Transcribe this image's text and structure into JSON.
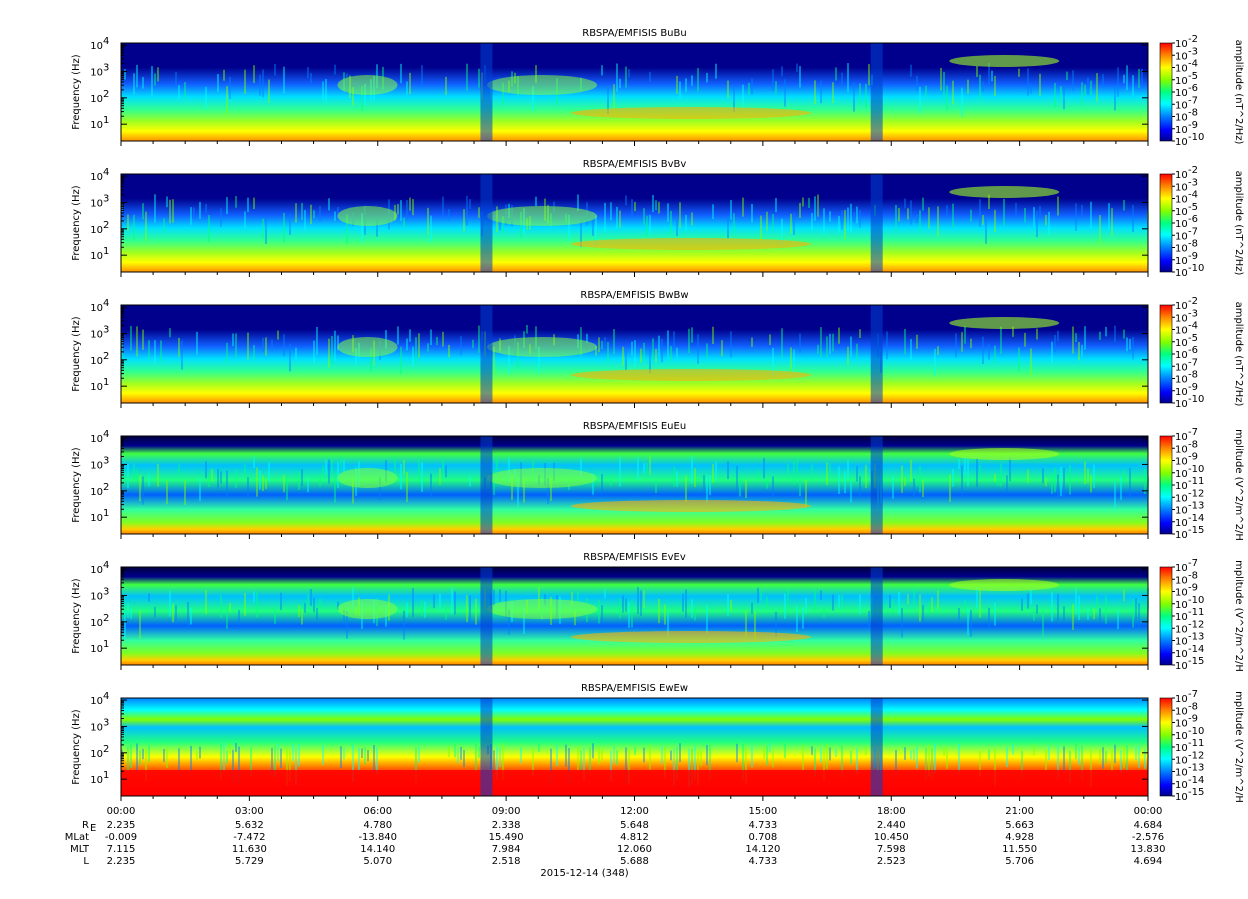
{
  "chart_data": [
    {
      "type": "heatmap",
      "title": "RBSPA/EMFISIS  BuBu",
      "ylabel": "Frequency (Hz)",
      "yscale": "log",
      "ylim": [
        2.3,
        12000
      ],
      "y_ticks": [
        {
          "base": "10",
          "exp": "1"
        },
        {
          "base": "10",
          "exp": "2"
        },
        {
          "base": "10",
          "exp": "3"
        },
        {
          "base": "10",
          "exp": "4"
        }
      ],
      "colorbar": {
        "label": "amplitude (nT^2/Hz)",
        "scale": "log",
        "range": [
          "1e-10",
          "1e-2"
        ],
        "ticks": [
          {
            "base": "10",
            "exp": "-2"
          },
          {
            "base": "10",
            "exp": "-3"
          },
          {
            "base": "10",
            "exp": "-4"
          },
          {
            "base": "10",
            "exp": "-5"
          },
          {
            "base": "10",
            "exp": "-6"
          },
          {
            "base": "10",
            "exp": "-7"
          },
          {
            "base": "10",
            "exp": "-8"
          },
          {
            "base": "10",
            "exp": "-9"
          },
          {
            "base": "10",
            "exp": "-10"
          }
        ]
      }
    },
    {
      "type": "heatmap",
      "title": "RBSPA/EMFISIS  BvBv",
      "ylabel": "Frequency (Hz)",
      "yscale": "log",
      "ylim": [
        2.3,
        12000
      ],
      "y_ticks": [
        {
          "base": "10",
          "exp": "1"
        },
        {
          "base": "10",
          "exp": "2"
        },
        {
          "base": "10",
          "exp": "3"
        },
        {
          "base": "10",
          "exp": "4"
        }
      ],
      "colorbar": {
        "label": "amplitude (nT^2/Hz)",
        "scale": "log",
        "range": [
          "1e-10",
          "1e-2"
        ],
        "ticks": [
          {
            "base": "10",
            "exp": "-2"
          },
          {
            "base": "10",
            "exp": "-3"
          },
          {
            "base": "10",
            "exp": "-4"
          },
          {
            "base": "10",
            "exp": "-5"
          },
          {
            "base": "10",
            "exp": "-6"
          },
          {
            "base": "10",
            "exp": "-7"
          },
          {
            "base": "10",
            "exp": "-8"
          },
          {
            "base": "10",
            "exp": "-9"
          },
          {
            "base": "10",
            "exp": "-10"
          }
        ]
      }
    },
    {
      "type": "heatmap",
      "title": "RBSPA/EMFISIS  BwBw",
      "ylabel": "Frequency (Hz)",
      "yscale": "log",
      "ylim": [
        2.3,
        12000
      ],
      "y_ticks": [
        {
          "base": "10",
          "exp": "1"
        },
        {
          "base": "10",
          "exp": "2"
        },
        {
          "base": "10",
          "exp": "3"
        },
        {
          "base": "10",
          "exp": "4"
        }
      ],
      "colorbar": {
        "label": "amplitude (nT^2/Hz)",
        "scale": "log",
        "range": [
          "1e-10",
          "1e-2"
        ],
        "ticks": [
          {
            "base": "10",
            "exp": "-2"
          },
          {
            "base": "10",
            "exp": "-3"
          },
          {
            "base": "10",
            "exp": "-4"
          },
          {
            "base": "10",
            "exp": "-5"
          },
          {
            "base": "10",
            "exp": "-6"
          },
          {
            "base": "10",
            "exp": "-7"
          },
          {
            "base": "10",
            "exp": "-8"
          },
          {
            "base": "10",
            "exp": "-9"
          },
          {
            "base": "10",
            "exp": "-10"
          }
        ]
      }
    },
    {
      "type": "heatmap",
      "title": "RBSPA/EMFISIS  EuEu",
      "ylabel": "Frequency (Hz)",
      "yscale": "log",
      "ylim": [
        2.3,
        12000
      ],
      "y_ticks": [
        {
          "base": "10",
          "exp": "1"
        },
        {
          "base": "10",
          "exp": "2"
        },
        {
          "base": "10",
          "exp": "3"
        },
        {
          "base": "10",
          "exp": "4"
        }
      ],
      "colorbar": {
        "label": "mplitude (V^2/m^2/H",
        "scale": "log",
        "range": [
          "1e-15",
          "1e-7"
        ],
        "ticks": [
          {
            "base": "10",
            "exp": "-7"
          },
          {
            "base": "10",
            "exp": "-8"
          },
          {
            "base": "10",
            "exp": "-9"
          },
          {
            "base": "10",
            "exp": "-10"
          },
          {
            "base": "10",
            "exp": "-11"
          },
          {
            "base": "10",
            "exp": "-12"
          },
          {
            "base": "10",
            "exp": "-13"
          },
          {
            "base": "10",
            "exp": "-14"
          },
          {
            "base": "10",
            "exp": "-15"
          }
        ]
      }
    },
    {
      "type": "heatmap",
      "title": "RBSPA/EMFISIS  EvEv",
      "ylabel": "Frequency (Hz)",
      "yscale": "log",
      "ylim": [
        2.3,
        12000
      ],
      "y_ticks": [
        {
          "base": "10",
          "exp": "1"
        },
        {
          "base": "10",
          "exp": "2"
        },
        {
          "base": "10",
          "exp": "3"
        },
        {
          "base": "10",
          "exp": "4"
        }
      ],
      "colorbar": {
        "label": "mplitude (V^2/m^2/H",
        "scale": "log",
        "range": [
          "1e-15",
          "1e-7"
        ],
        "ticks": [
          {
            "base": "10",
            "exp": "-7"
          },
          {
            "base": "10",
            "exp": "-8"
          },
          {
            "base": "10",
            "exp": "-9"
          },
          {
            "base": "10",
            "exp": "-10"
          },
          {
            "base": "10",
            "exp": "-11"
          },
          {
            "base": "10",
            "exp": "-12"
          },
          {
            "base": "10",
            "exp": "-13"
          },
          {
            "base": "10",
            "exp": "-14"
          },
          {
            "base": "10",
            "exp": "-15"
          }
        ]
      }
    },
    {
      "type": "heatmap",
      "title": "RBSPA/EMFISIS  EwEw",
      "ylabel": "Frequency (Hz)",
      "yscale": "log",
      "ylim": [
        2.3,
        12000
      ],
      "y_ticks": [
        {
          "base": "10",
          "exp": "1"
        },
        {
          "base": "10",
          "exp": "2"
        },
        {
          "base": "10",
          "exp": "3"
        },
        {
          "base": "10",
          "exp": "4"
        }
      ],
      "colorbar": {
        "label": "mplitude (V^2/m^2/H",
        "scale": "log",
        "range": [
          "1e-15",
          "1e-7"
        ],
        "ticks": [
          {
            "base": "10",
            "exp": "-7"
          },
          {
            "base": "10",
            "exp": "-8"
          },
          {
            "base": "10",
            "exp": "-9"
          },
          {
            "base": "10",
            "exp": "-10"
          },
          {
            "base": "10",
            "exp": "-11"
          },
          {
            "base": "10",
            "exp": "-12"
          },
          {
            "base": "10",
            "exp": "-13"
          },
          {
            "base": "10",
            "exp": "-14"
          },
          {
            "base": "10",
            "exp": "-15"
          }
        ]
      }
    }
  ],
  "time_axis": {
    "ticks": [
      "00:00",
      "03:00",
      "06:00",
      "09:00",
      "12:00",
      "15:00",
      "18:00",
      "21:00",
      "00:00"
    ],
    "minor_per_major": 4,
    "date_label": "2015-12-14 (348)"
  },
  "ephemeris": [
    {
      "label": "R",
      "sub": "E",
      "values": [
        "2.235",
        "5.632",
        "4.780",
        "2.338",
        "5.648",
        "4.733",
        "2.440",
        "5.663",
        "4.684"
      ]
    },
    {
      "label": "MLat",
      "sub": "",
      "values": [
        "-0.009",
        "-7.472",
        "-13.840",
        "15.490",
        "4.812",
        "0.708",
        "10.450",
        "4.928",
        "-2.576"
      ]
    },
    {
      "label": "MLT",
      "sub": "",
      "values": [
        "7.115",
        "11.630",
        "14.140",
        "7.984",
        "12.060",
        "14.120",
        "7.598",
        "11.550",
        "13.830"
      ]
    },
    {
      "label": "L",
      "sub": "",
      "values": [
        "2.235",
        "5.729",
        "5.070",
        "2.518",
        "5.688",
        "4.733",
        "2.523",
        "5.706",
        "4.694"
      ]
    }
  ],
  "colors": {
    "background_low": "#00008c",
    "colormap": [
      "#00008c",
      "#0000ff",
      "#0080ff",
      "#00ffff",
      "#00ff80",
      "#80ff00",
      "#ffff00",
      "#ff8000",
      "#ff0000"
    ]
  }
}
